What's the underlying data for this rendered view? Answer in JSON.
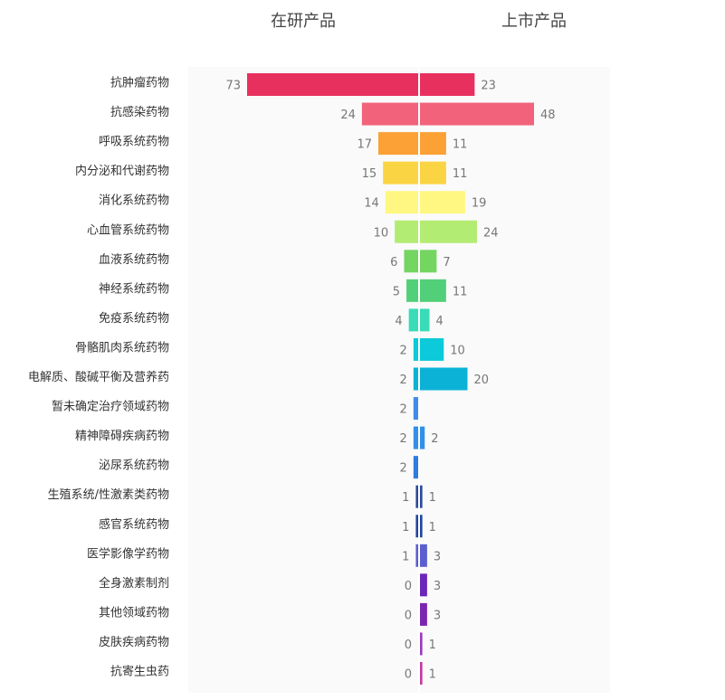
{
  "chart_data": {
    "type": "bar",
    "orientation": "horizontal-diverging",
    "panels": [
      {
        "title": "在研产品",
        "side": "left"
      },
      {
        "title": "上市产品",
        "side": "right"
      }
    ],
    "categories": [
      "抗肿瘤药物",
      "抗感染药物",
      "呼吸系统药物",
      "内分泌和代谢药物",
      "消化系统药物",
      "心血管系统药物",
      "血液系统药物",
      "神经系统药物",
      "免疫系统药物",
      "骨骼肌肉系统药物",
      "电解质、酸碱平衡及营养药",
      "暂未确定治疗领域药物",
      "精神障碍疾病药物",
      "泌尿系统药物",
      "生殖系统/性激素类药物",
      "感官系统药物",
      "医学影像学药物",
      "全身激素制剂",
      "其他领域药物",
      "皮肤疾病药物",
      "抗寄生虫药"
    ],
    "series": [
      {
        "values": [
          73,
          24,
          17,
          15,
          14,
          10,
          6,
          5,
          4,
          2,
          2,
          2,
          2,
          2,
          1,
          1,
          1,
          0,
          0,
          0,
          0
        ]
      },
      {
        "values": [
          23,
          48,
          11,
          11,
          19,
          24,
          7,
          11,
          4,
          10,
          20,
          null,
          2,
          null,
          1,
          1,
          3,
          3,
          3,
          1,
          1
        ]
      }
    ],
    "colors": [
      "#E8305E",
      "#F2637B",
      "#FBA136",
      "#FBD444",
      "#FFF782",
      "#B3EC73",
      "#74D561",
      "#52CF79",
      "#3ADCB8",
      "#0CCAD9",
      "#0CB2D6",
      "#3F8BE9",
      "#338FE8",
      "#2E7CE0",
      "#2A4A9A",
      "#20469E",
      "#5B5ECF",
      "#6A27B9",
      "#7A26B0",
      "#9B3AC0",
      "#C13A9F"
    ],
    "legend": "none",
    "grid": false
  }
}
